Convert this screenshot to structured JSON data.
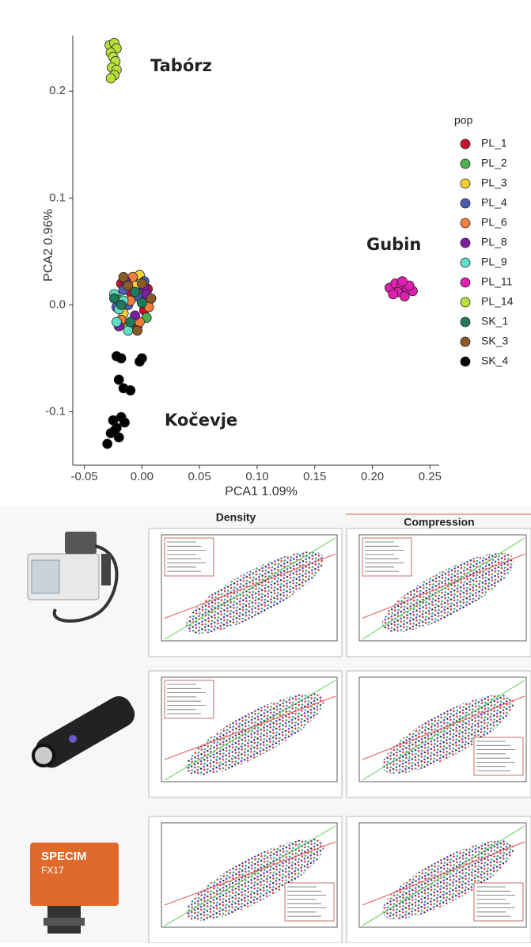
{
  "chart_data": {
    "type": "scatter",
    "x_label": "PCA1 1.09%",
    "y_label": "PCA2 0.96%",
    "legend_title": "pop",
    "legend": "right",
    "annotations": [
      "Tabórz",
      "Gubin",
      "Kočevje"
    ],
    "xlim": [
      -0.06,
      0.258
    ],
    "ylim": [
      -0.15,
      0.252
    ],
    "xticks": [
      -0.05,
      {
        "value": 0,
        "label": "0.00"
      },
      0.05,
      {
        "value": 0.1,
        "label": "0.10"
      },
      0.15,
      {
        "value": 0.2,
        "label": "0.20"
      },
      0.25
    ],
    "yticks": [
      -0.1,
      {
        "value": 0,
        "label": "0.0"
      },
      0.1,
      0.2
    ],
    "series": [
      {
        "name": "PL_1",
        "color": "#c8102e",
        "x": [
          -0.01,
          0.002,
          -0.018,
          0.005,
          -0.004
        ],
        "values": [
          0.012,
          -0.005,
          0.02,
          0.015,
          -0.02
        ]
      },
      {
        "name": "PL_2",
        "color": "#4caf50",
        "x": [
          -0.02,
          -0.008,
          0.004,
          -0.014,
          0.0
        ],
        "values": [
          0.005,
          0.025,
          -0.012,
          -0.018,
          0.01
        ]
      },
      {
        "name": "PL_3",
        "color": "#f5d033",
        "x": [
          -0.006,
          0.006,
          -0.016,
          -0.002,
          -0.012
        ],
        "values": [
          0.018,
          0.004,
          -0.008,
          0.028,
          -0.022
        ]
      },
      {
        "name": "PL_4",
        "color": "#4a5db0",
        "x": [
          -0.022,
          -0.004,
          0.002,
          -0.012,
          -0.016
        ],
        "values": [
          -0.002,
          0.008,
          0.022,
          0.0,
          0.014
        ]
      },
      {
        "name": "PL_6",
        "color": "#f07f3c",
        "x": [
          -0.008,
          -0.018,
          0.006,
          -0.01,
          -0.002
        ],
        "values": [
          0.026,
          -0.014,
          -0.002,
          0.004,
          -0.016
        ]
      },
      {
        "name": "PL_8",
        "color": "#7b1fa2",
        "x": [
          -0.014,
          0.002,
          -0.02,
          -0.006,
          0.004
        ],
        "values": [
          0.022,
          0.016,
          -0.02,
          -0.01,
          0.01
        ]
      },
      {
        "name": "PL_9",
        "color": "#5ee0c8",
        "x": [
          -0.024,
          -0.02,
          -0.016,
          -0.022,
          -0.012
        ],
        "values": [
          0.01,
          -0.004,
          0.004,
          -0.016,
          -0.024
        ]
      },
      {
        "name": "PL_11",
        "color": "#e020b0",
        "x": [
          0.215,
          0.22,
          0.225,
          0.23,
          0.235,
          0.222,
          0.228,
          0.218,
          0.232,
          0.226
        ],
        "values": [
          0.016,
          0.02,
          0.018,
          0.015,
          0.013,
          0.012,
          0.008,
          0.01,
          0.018,
          0.022
        ]
      },
      {
        "name": "PL_14",
        "color": "#b8e03a",
        "x": [
          -0.028,
          -0.024,
          -0.022,
          -0.027,
          -0.025,
          -0.023,
          -0.026,
          -0.022,
          -0.024,
          -0.027
        ],
        "values": [
          0.243,
          0.245,
          0.24,
          0.236,
          0.232,
          0.228,
          0.222,
          0.22,
          0.215,
          0.212
        ]
      },
      {
        "name": "SK_1",
        "color": "#1f7a5c",
        "x": [
          -0.018,
          -0.01,
          0.0,
          -0.024,
          -0.006
        ],
        "values": [
          0.0,
          -0.016,
          0.002,
          0.006,
          0.012
        ]
      },
      {
        "name": "SK_3",
        "color": "#8b5a2b",
        "x": [
          -0.012,
          -0.004,
          0.008,
          -0.016,
          0.0
        ],
        "values": [
          0.018,
          -0.024,
          0.006,
          0.026,
          0.02
        ]
      },
      {
        "name": "SK_4",
        "color": "#000000",
        "x": [
          -0.022,
          -0.018,
          0.0,
          -0.002,
          -0.02,
          -0.016,
          -0.01,
          -0.025,
          -0.018,
          -0.022,
          -0.015,
          -0.027,
          -0.02,
          -0.03,
          -0.024
        ],
        "values": [
          -0.048,
          -0.05,
          -0.05,
          -0.053,
          -0.07,
          -0.078,
          -0.08,
          -0.108,
          -0.105,
          -0.115,
          -0.11,
          -0.12,
          -0.124,
          -0.13,
          -0.118
        ]
      }
    ]
  },
  "panels": {
    "headings": [
      "Density",
      "Compression"
    ],
    "device_label": [
      "SPECIM",
      "FX17"
    ]
  }
}
